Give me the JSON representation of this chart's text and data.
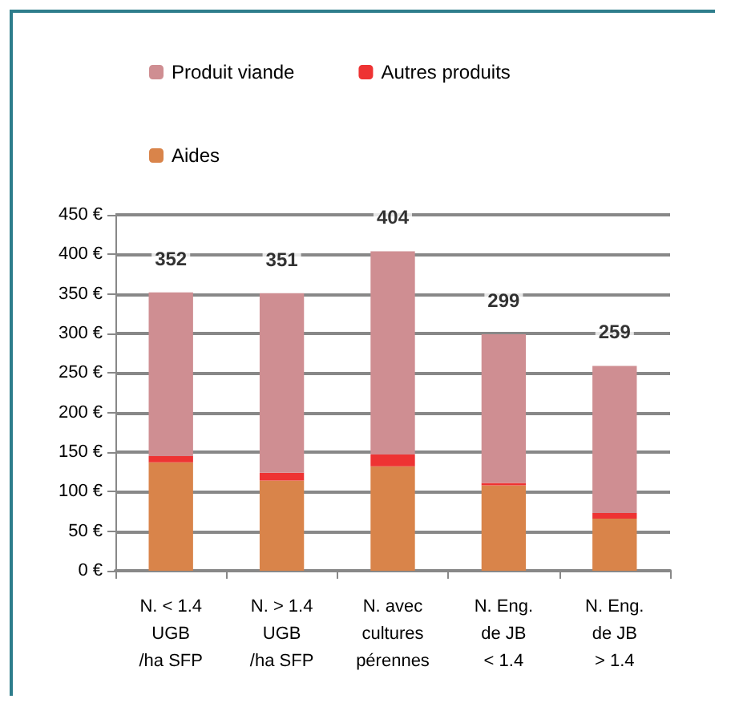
{
  "chart_data": {
    "type": "bar",
    "stacked": true,
    "categories": [
      "N. < 1.4\nUGB\n/ha SFP",
      "N. > 1.4\nUGB\n/ha SFP",
      "N. avec\ncultures\npérennes",
      "N. Eng.\nde JB\n< 1.4",
      "N. Eng.\nde JB\n> 1.4"
    ],
    "series": [
      {
        "name": "Aides",
        "color": "#d9844a",
        "values": [
          137,
          114,
          132,
          108,
          66
        ]
      },
      {
        "name": "Autres produits",
        "color": "#ee3333",
        "values": [
          8,
          10,
          15,
          3,
          7
        ]
      },
      {
        "name": "Produit viande",
        "color": "#cf8e92",
        "values": [
          207,
          227,
          257,
          188,
          186
        ]
      }
    ],
    "totals": [
      "352",
      "351",
      "404",
      "299",
      "259"
    ],
    "ylim": [
      0,
      450
    ],
    "yticks": [
      {
        "value": 0,
        "label": "0 €"
      },
      {
        "value": 50,
        "label": "50 €"
      },
      {
        "value": 100,
        "label": "100 €"
      },
      {
        "value": 150,
        "label": "150 €"
      },
      {
        "value": 200,
        "label": "200 €"
      },
      {
        "value": 250,
        "label": "250 €"
      },
      {
        "value": 300,
        "label": "300 €"
      },
      {
        "value": 350,
        "label": "350 €"
      },
      {
        "value": 400,
        "label": "400 €"
      },
      {
        "value": 450,
        "label": "450 €"
      }
    ],
    "grid": "y",
    "legend": "top"
  }
}
